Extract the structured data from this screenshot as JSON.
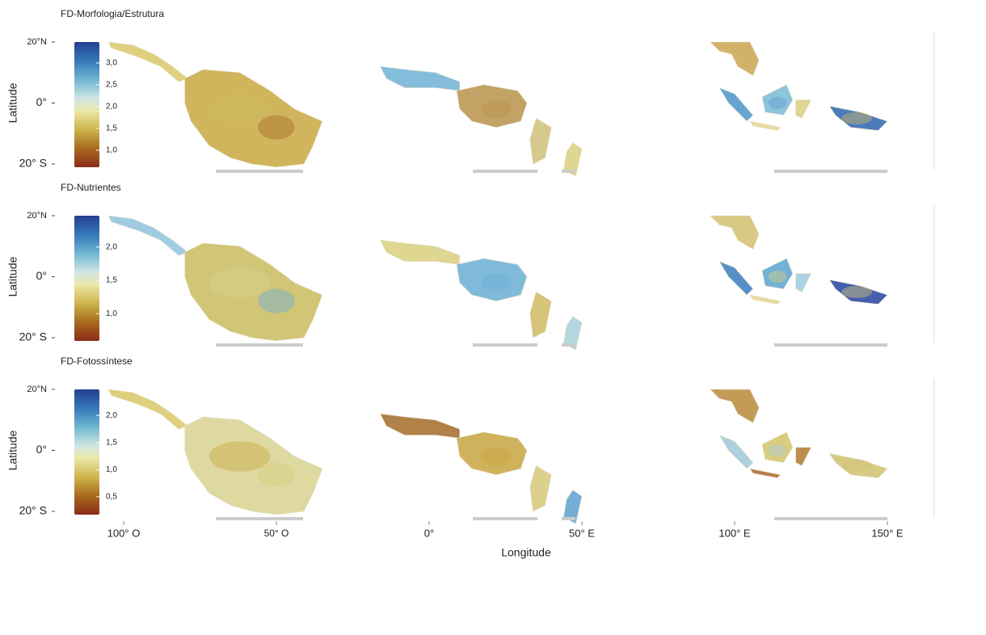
{
  "x_axis": {
    "label": "Longitude",
    "ticks": [
      {
        "value": -100,
        "label": "100° O"
      },
      {
        "value": -50,
        "label": "50° O"
      },
      {
        "value": 0,
        "label": "0°"
      },
      {
        "value": 50,
        "label": "50° E"
      },
      {
        "value": 100,
        "label": "100° E"
      },
      {
        "value": 150,
        "label": "150° E"
      }
    ]
  },
  "panels": [
    {
      "title": "FD-Morfologia/Estrutura",
      "y_label": "Latitude",
      "y_ticks": [
        {
          "value": 20,
          "label": "20°N"
        },
        {
          "value": 0,
          "label": "0°"
        },
        {
          "value": -20,
          "label": "20° S"
        }
      ],
      "colorbar": {
        "lim": [
          0.61,
          3.48
        ],
        "ticks": [
          {
            "value": 1.0,
            "label": "1,0"
          },
          {
            "value": 1.5,
            "label": "1,5"
          },
          {
            "value": 2.0,
            "label": "2,0"
          },
          {
            "value": 2.5,
            "label": "2,5"
          },
          {
            "value": 3.0,
            "label": "3,0"
          }
        ]
      }
    },
    {
      "title": "FD-Nutrientes",
      "y_label": "Latitude",
      "y_ticks": [
        {
          "value": 20,
          "label": "20°N"
        },
        {
          "value": 0,
          "label": "0°"
        },
        {
          "value": -20,
          "label": "20° S"
        }
      ],
      "colorbar": {
        "lim": [
          0.59,
          2.47
        ],
        "ticks": [
          {
            "value": 1.0,
            "label": "1,0"
          },
          {
            "value": 1.5,
            "label": "1,5"
          },
          {
            "value": 2.0,
            "label": "2,0"
          }
        ]
      }
    },
    {
      "title": "FD-Fotossíntese",
      "y_label": "Latitude",
      "y_ticks": [
        {
          "value": 20,
          "label": "20°N"
        },
        {
          "value": 0,
          "label": "0°"
        },
        {
          "value": -20,
          "label": "20° S"
        }
      ],
      "colorbar": {
        "lim": [
          0.17,
          2.48
        ],
        "ticks": [
          {
            "value": 0.5,
            "label": "0,5"
          },
          {
            "value": 1.0,
            "label": "1,0"
          },
          {
            "value": 1.5,
            "label": "1,5"
          },
          {
            "value": 2.0,
            "label": "2,0"
          }
        ]
      }
    }
  ]
}
